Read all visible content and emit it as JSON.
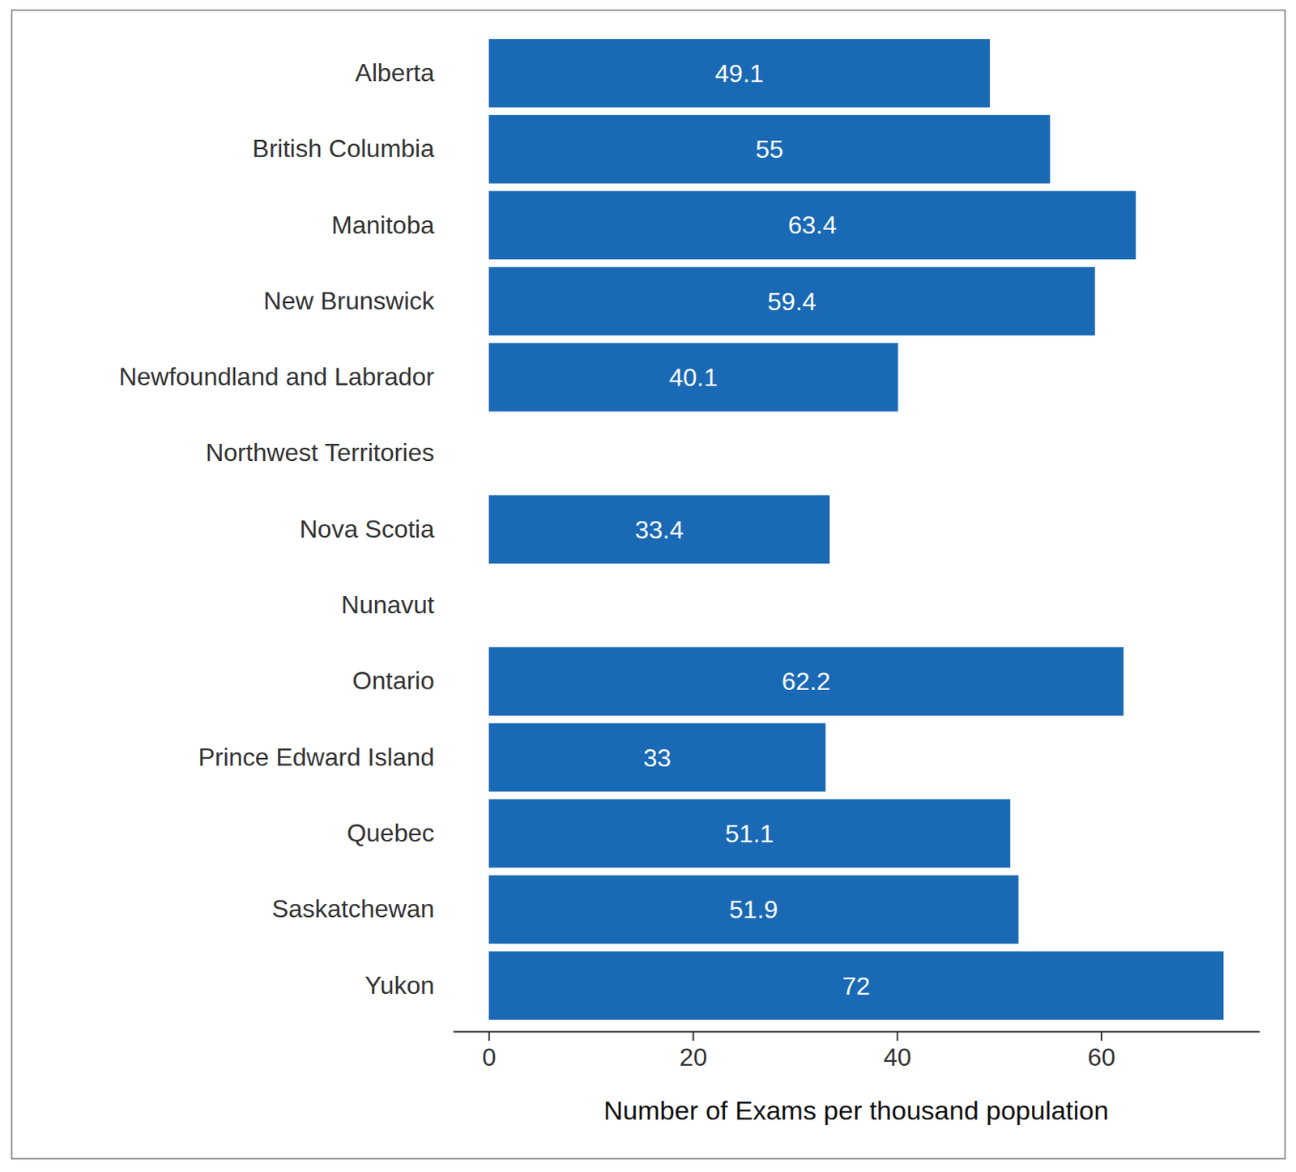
{
  "chart_data": {
    "type": "bar",
    "orientation": "horizontal",
    "x_label": "Number of Exams per thousand population",
    "categories": [
      "Alberta",
      "British Columbia",
      "Manitoba",
      "New Brunswick",
      "Newfoundland and Labrador",
      "Northwest Territories",
      "Nova Scotia",
      "Nunavut",
      "Ontario",
      "Prince Edward Island",
      "Quebec",
      "Saskatchewan",
      "Yukon"
    ],
    "values": [
      49.1,
      55,
      63.4,
      59.4,
      40.1,
      null,
      33.4,
      null,
      62.2,
      33,
      51.1,
      51.9,
      72
    ],
    "color": "#1a69b4",
    "xlim": [
      -3.5,
      75.5
    ],
    "xticks": [
      0,
      20,
      40,
      60
    ],
    "grid": false,
    "data_labels": true
  }
}
